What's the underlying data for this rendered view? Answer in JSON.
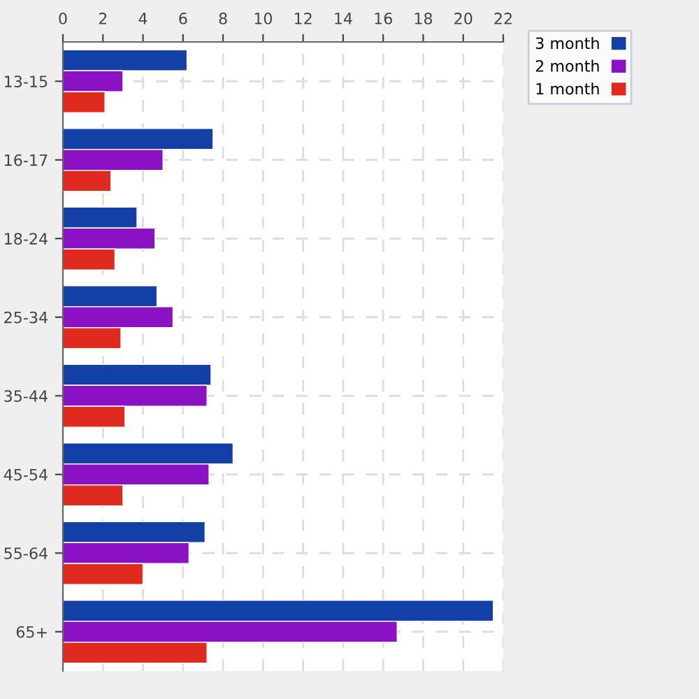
{
  "chart_data": {
    "type": "bar",
    "orientation": "horizontal",
    "categories": [
      "13-15",
      "16-17",
      "18-24",
      "25-34",
      "35-44",
      "45-54",
      "55-64",
      "65+"
    ],
    "series": [
      {
        "name": "3 month",
        "color": "#1340a6",
        "values": [
          6.2,
          7.5,
          3.7,
          4.7,
          7.4,
          8.5,
          7.1,
          21.5
        ]
      },
      {
        "name": "2 month",
        "color": "#8a12c4",
        "values": [
          3.0,
          5.0,
          4.6,
          5.5,
          7.2,
          7.3,
          6.3,
          16.7
        ]
      },
      {
        "name": "1 month",
        "color": "#e02a20",
        "values": [
          2.1,
          2.4,
          2.6,
          2.9,
          3.1,
          3.0,
          4.0,
          7.2
        ]
      }
    ],
    "xlim": [
      0,
      22
    ],
    "xticks": [
      0,
      2,
      4,
      6,
      8,
      10,
      12,
      14,
      16,
      18,
      20,
      22
    ],
    "grid": true,
    "legend": "top right"
  }
}
